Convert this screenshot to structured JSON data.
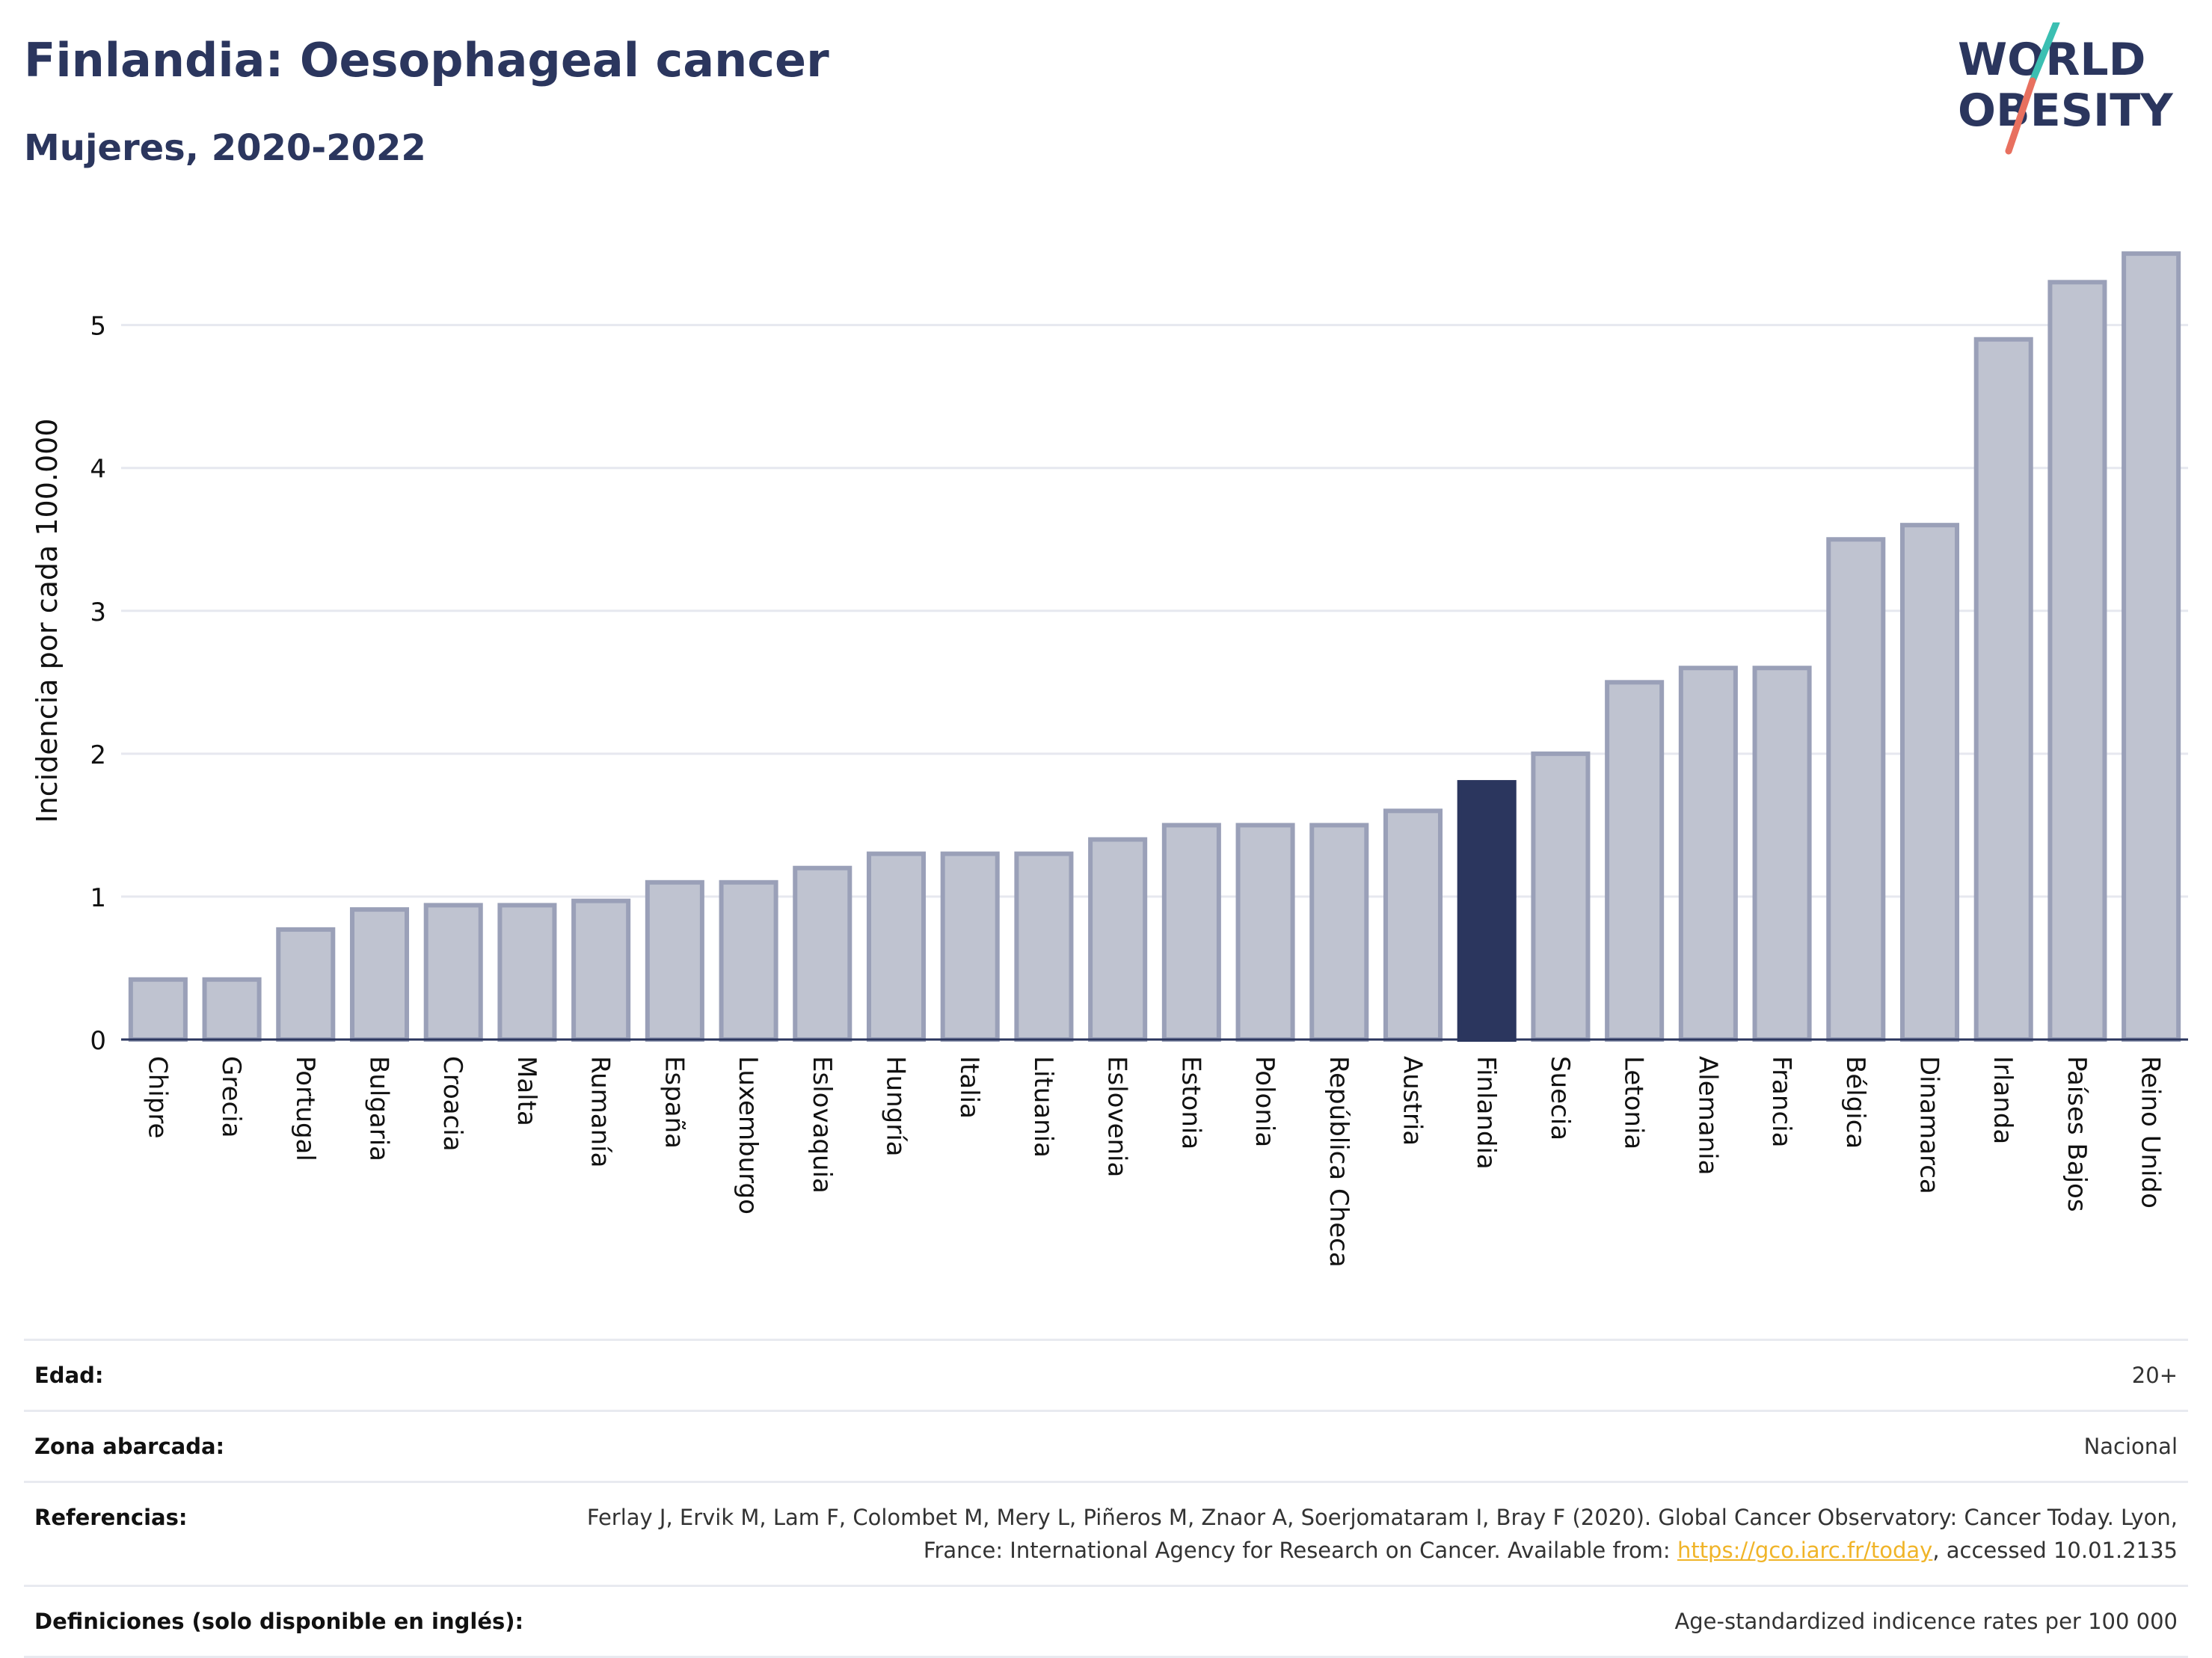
{
  "header": {
    "title": "Finlandia: Oesophageal cancer",
    "subtitle": "Mujeres, 2020-2022"
  },
  "logo": {
    "line1": "WORLD",
    "line2": "OBESITY",
    "colors": {
      "text": "#2b365e",
      "slash_top": "#3bbfb2",
      "slash_bottom": "#e8705f"
    }
  },
  "chart_data": {
    "type": "bar",
    "title": "Finlandia: Oesophageal cancer",
    "subtitle": "Mujeres, 2020-2022",
    "ylabel": "Incidencia por cada 100.000",
    "xlabel": "",
    "ylim": [
      0,
      5.6
    ],
    "yticks": [
      0,
      1,
      2,
      3,
      4,
      5
    ],
    "grid": true,
    "highlight": "Finlandia",
    "colors": {
      "bar": "#bfc3d0",
      "bar_edge": "#9aa0b8",
      "highlight": "#2b365e",
      "grid": "#e6e8ef",
      "axis": "#2b365e"
    },
    "categories": [
      "Chipre",
      "Grecia",
      "Portugal",
      "Bulgaria",
      "Croacia",
      "Malta",
      "Rumanía",
      "España",
      "Luxemburgo",
      "Eslovaquia",
      "Hungría",
      "Italia",
      "Lituania",
      "Eslovenia",
      "Estonia",
      "Polonia",
      "República Checa",
      "Austria",
      "Finlandia",
      "Suecia",
      "Letonia",
      "Alemania",
      "Francia",
      "Bélgica",
      "Dinamarca",
      "Irlanda",
      "Países Bajos",
      "Reino Unido"
    ],
    "values": [
      0.42,
      0.42,
      0.77,
      0.91,
      0.94,
      0.94,
      0.97,
      1.1,
      1.1,
      1.2,
      1.3,
      1.3,
      1.3,
      1.4,
      1.5,
      1.5,
      1.5,
      1.6,
      1.8,
      2.0,
      2.5,
      2.6,
      2.6,
      3.5,
      3.6,
      4.9,
      5.3,
      5.5
    ]
  },
  "info": {
    "rows": [
      {
        "key": "Edad:",
        "value": "20+"
      },
      {
        "key": "Zona abarcada:",
        "value": "Nacional"
      },
      {
        "key": "Referencias:",
        "value_pre": "Ferlay J, Ervik M, Lam F, Colombet M, Mery L, Piñeros M, Znaor A, Soerjomataram I, Bray F (2020). Global Cancer Observatory: Cancer Today. Lyon, France: International Agency for Research on Cancer. Available from: ",
        "link": "https://gco.iarc.fr/today",
        "value_post": ", accessed 10.01.2135"
      },
      {
        "key": "Definiciones (solo disponible en inglés):",
        "value": "Age-standardized indicence rates per 100 000"
      }
    ]
  }
}
